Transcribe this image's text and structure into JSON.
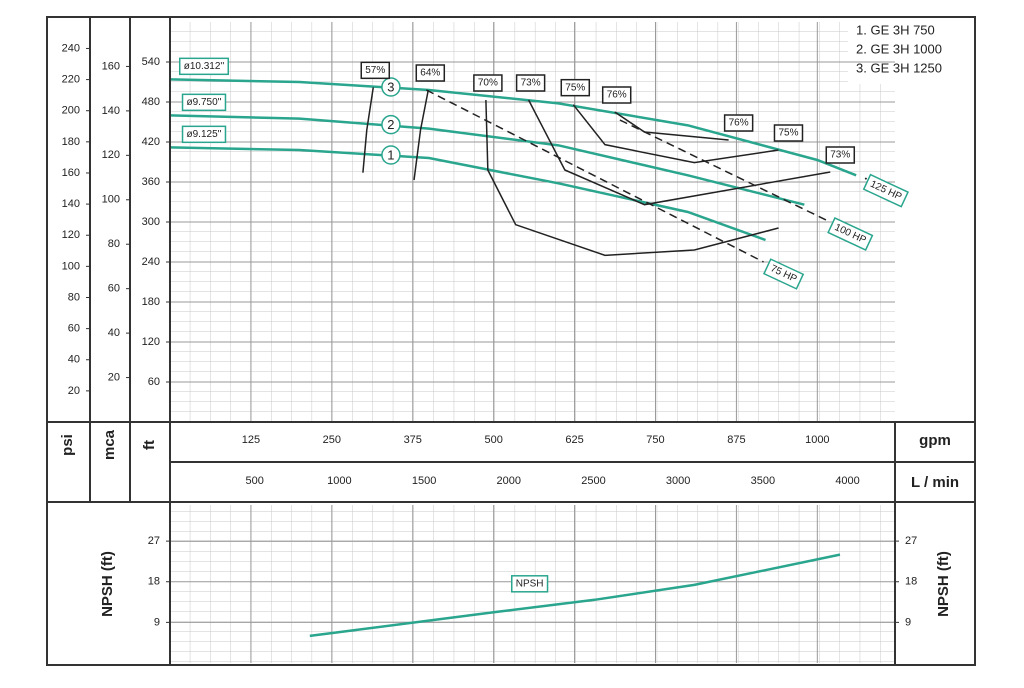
{
  "chart_data": [
    {
      "type": "line",
      "legend": [
        "1. GE 3H 750",
        "2. GE 3H 1000",
        "3. GE 3H 1250"
      ],
      "xlabel": "gpm",
      "xlim": [
        0,
        1120
      ],
      "xticks": [
        125,
        250,
        375,
        500,
        625,
        750,
        875,
        1000
      ],
      "x2label": "L / min",
      "x2lim": [
        0,
        4280
      ],
      "x2ticks": [
        500,
        1000,
        1500,
        2000,
        2500,
        3000,
        3500,
        4000
      ],
      "ylabel": "ft",
      "ylim": [
        0,
        600
      ],
      "yticks": [
        60,
        120,
        180,
        240,
        300,
        360,
        420,
        480,
        540
      ],
      "y2label": "psi",
      "y2lim": [
        0,
        257
      ],
      "y2ticks": [
        20,
        40,
        60,
        80,
        100,
        120,
        140,
        160,
        180,
        200,
        220,
        240
      ],
      "y3label": "mca",
      "y3lim": [
        0,
        180
      ],
      "y3ticks": [
        20,
        40,
        60,
        80,
        100,
        120,
        140,
        160
      ],
      "grid": true,
      "series": [
        {
          "name": "ø9.125''",
          "label": "1",
          "color": "#2aa58e",
          "x": [
            0,
            200,
            400,
            600,
            800,
            920
          ],
          "values": [
            412,
            408,
            396,
            358,
            315,
            273
          ]
        },
        {
          "name": "ø9.750''",
          "label": "2",
          "color": "#2aa58e",
          "x": [
            0,
            200,
            400,
            600,
            800,
            980
          ],
          "values": [
            460,
            455,
            440,
            415,
            370,
            326
          ]
        },
        {
          "name": "ø10.312''",
          "label": "3",
          "color": "#2aa58e",
          "x": [
            0,
            200,
            400,
            600,
            800,
            1000,
            1060
          ],
          "values": [
            514,
            510,
            498,
            478,
            445,
            393,
            370
          ]
        }
      ],
      "efficiency_curves": [
        {
          "name": "57%",
          "color": "#222222",
          "x": [
            314,
            304,
            298
          ],
          "values": [
            502,
            438,
            374
          ],
          "label_ends": [
            "start"
          ]
        },
        {
          "name": "64%",
          "color": "#222222",
          "x": [
            399,
            387,
            377
          ],
          "values": [
            498,
            438,
            363
          ],
          "label_ends": [
            "start"
          ]
        },
        {
          "name": "70%",
          "color": "#222222",
          "x": [
            488,
            491,
            534,
            672,
            810,
            940
          ],
          "values": [
            483,
            378,
            296,
            250,
            258,
            291
          ],
          "label_ends": [
            "start"
          ]
        },
        {
          "name": "73%",
          "color": "#222222",
          "x": [
            554,
            610,
            733,
            1020
          ],
          "values": [
            483,
            378,
            326,
            375
          ],
          "label_ends": [
            "start",
            "end"
          ]
        },
        {
          "name": "75%",
          "color": "#222222",
          "x": [
            623,
            672,
            810,
            940
          ],
          "values": [
            476,
            416,
            389,
            408
          ],
          "label_ends": [
            "start",
            "end"
          ]
        },
        {
          "name": "76%",
          "color": "#222222",
          "x": [
            687,
            733,
            863
          ],
          "values": [
            465,
            435,
            423
          ],
          "label_ends": [
            "start",
            "end"
          ]
        }
      ],
      "power_lines": [
        {
          "name": "75 HP",
          "color": "#222222",
          "dashed": true,
          "x": [
            396,
            917
          ],
          "values": [
            498,
            240
          ]
        },
        {
          "name": "100 HP",
          "color": "#222222",
          "dashed": true,
          "x": [
            695,
            1020
          ],
          "values": [
            453,
            300
          ]
        },
        {
          "name": "125 HP",
          "color": "#222222",
          "dashed": true,
          "x": [
            1075
          ],
          "values": [
            365
          ]
        }
      ]
    },
    {
      "type": "line",
      "ylabel": "NPSH (ft)",
      "ylim": [
        0,
        35
      ],
      "yticks": [
        9,
        18,
        27
      ],
      "grid": true,
      "series": [
        {
          "name": "NPSH",
          "color": "#2aa58e",
          "x": [
            216,
            503,
            656,
            810,
            1035
          ],
          "values": [
            6.0,
            11.3,
            14.0,
            17.3,
            24.0
          ]
        }
      ]
    }
  ]
}
